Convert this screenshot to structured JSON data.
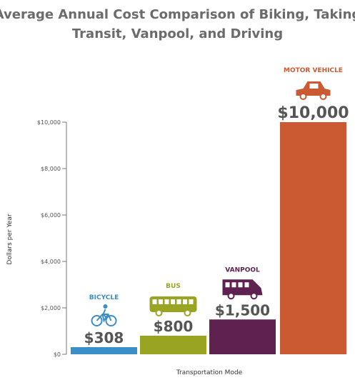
{
  "chart_data": {
    "type": "bar",
    "title": "Average Annual Cost Comparison of Biking, Taking Transit, Vanpool, and Driving",
    "title_lines": [
      "Average Annual Cost Comparison of Biking, Taking",
      "Transit, Vanpool, and Driving"
    ],
    "xlabel": "Transportation Mode",
    "ylabel": "Dollars per Year",
    "ylim": [
      0,
      10000
    ],
    "yticks": [
      0,
      2000,
      4000,
      6000,
      8000,
      10000
    ],
    "ytick_labels": [
      "$0",
      "$2,000",
      "$4,000",
      "$6,000",
      "$8,000",
      "$10,000"
    ],
    "grid": false,
    "categories": [
      "BICYCLE",
      "BUS",
      "VANPOOL",
      "MOTOR VEHICLE"
    ],
    "values": [
      308,
      800,
      1500,
      10000
    ],
    "value_labels": [
      "$308",
      "$800",
      "$1,500",
      "$10,000"
    ],
    "colors": [
      "#3a8fc8",
      "#9aa423",
      "#5e2150",
      "#cb5a32"
    ],
    "icons": [
      "bicycle-icon",
      "bus-icon",
      "van-icon",
      "car-icon"
    ]
  }
}
